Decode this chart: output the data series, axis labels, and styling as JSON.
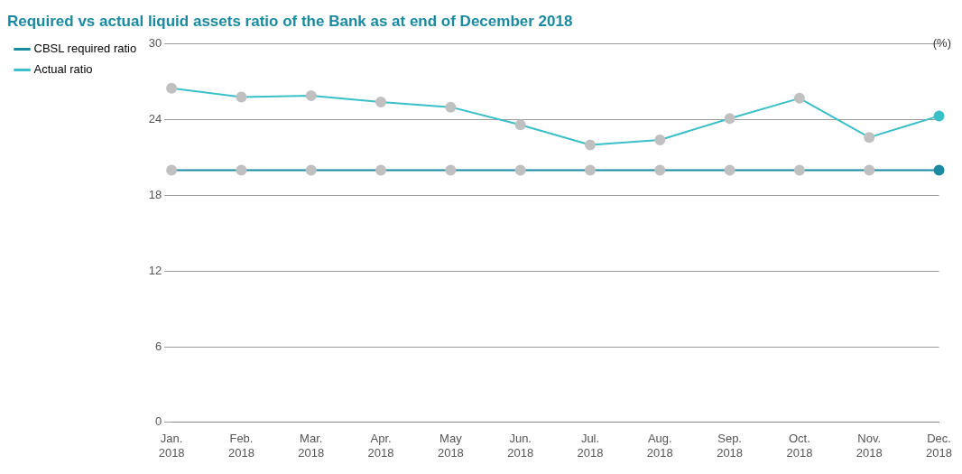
{
  "chart_data": {
    "type": "line",
    "title": "Required vs actual liquid assets ratio of the Bank as at end of December 2018",
    "annotations": [
      "(%)"
    ],
    "categories": [
      "Jan. 2018",
      "Feb. 2018",
      "Mar. 2018",
      "Apr. 2018",
      "May 2018",
      "Jun. 2018",
      "Jul. 2018",
      "Aug. 2018",
      "Sep. 2018",
      "Oct. 2018",
      "Nov. 2018",
      "Dec. 2018"
    ],
    "series": [
      {
        "name": "CBSL required ratio",
        "color": "#1a8aa0",
        "colors": [
          "#c0c0c0",
          "#c0c0c0",
          "#c0c0c0",
          "#c0c0c0",
          "#c0c0c0",
          "#c0c0c0",
          "#c0c0c0",
          "#c0c0c0",
          "#c0c0c0",
          "#c0c0c0",
          "#c0c0c0",
          "#1a8aa0"
        ],
        "values": [
          20,
          20,
          20,
          20,
          20,
          20,
          20,
          20,
          20,
          20,
          20,
          20
        ]
      },
      {
        "name": "Actual ratio",
        "color": "#3bbfc9",
        "colors": [
          "#c0c0c0",
          "#c0c0c0",
          "#c0c0c0",
          "#c0c0c0",
          "#c0c0c0",
          "#c0c0c0",
          "#c0c0c0",
          "#c0c0c0",
          "#c0c0c0",
          "#c0c0c0",
          "#c0c0c0",
          "#3bbfc9"
        ],
        "values": [
          26.5,
          25.8,
          25.9,
          25.4,
          25.0,
          23.6,
          22.0,
          22.4,
          24.1,
          25.7,
          22.6,
          24.3
        ]
      }
    ],
    "ylim": [
      0,
      30
    ],
    "yticks": [
      0,
      6,
      12,
      18,
      24,
      30
    ],
    "grid": "y",
    "legend": "top left",
    "marker": "circle",
    "line_style": "solid"
  }
}
